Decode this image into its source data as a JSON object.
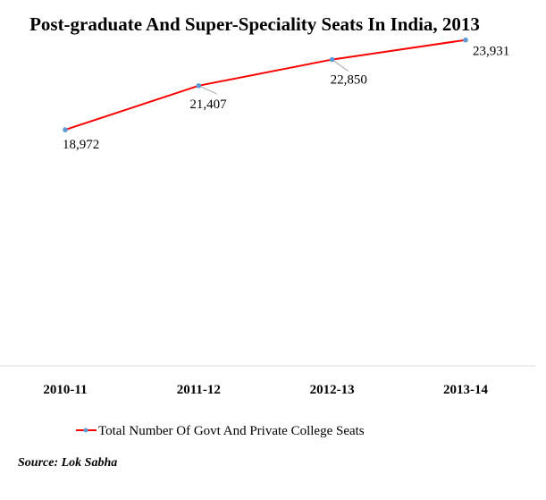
{
  "chart_data": {
    "type": "line",
    "title": "Post-graduate And Super-Speciality Seats In India, 2013",
    "categories": [
      "2010-11",
      "2011-12",
      "2012-13",
      "2013-14"
    ],
    "series": [
      {
        "name": "Total Number Of Govt And Private College Seats",
        "values": [
          18972,
          21407,
          22850,
          23931
        ],
        "labels": [
          "18,972",
          "21,407",
          "22,850",
          "23,931"
        ],
        "color": "#ff0000",
        "marker_color": "#5b9bd5"
      }
    ],
    "xlabel": "",
    "ylabel": "",
    "legend_position": "bottom",
    "grid": false
  },
  "source": "Source: Lok Sabha"
}
